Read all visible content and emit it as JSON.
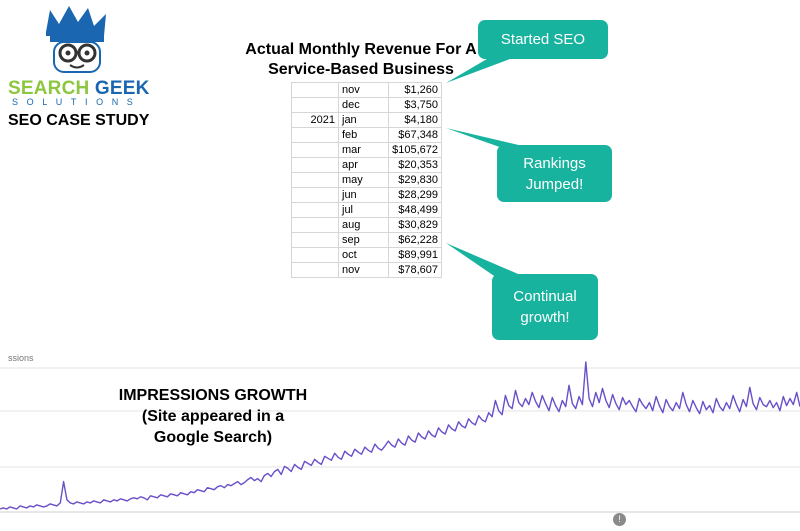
{
  "brand": {
    "name_part1": "SEARCH",
    "name_part2": "GEEK",
    "sub": "SOLUTIONS",
    "caption": "SEO CASE STUDY",
    "colors": {
      "green": "#8dc63f",
      "blue": "#1a66b0",
      "teal": "#17b39e"
    }
  },
  "table": {
    "title_line1": "Actual Monthly Revenue For A",
    "title_line2": "Service-Based Business",
    "rows": [
      {
        "year": "",
        "month": "nov",
        "value": "$1,260"
      },
      {
        "year": "",
        "month": "dec",
        "value": "$3,750"
      },
      {
        "year": "2021",
        "month": "jan",
        "value": "$4,180"
      },
      {
        "year": "",
        "month": "feb",
        "value": "$67,348"
      },
      {
        "year": "",
        "month": "mar",
        "value": "$105,672"
      },
      {
        "year": "",
        "month": "apr",
        "value": "$20,353"
      },
      {
        "year": "",
        "month": "may",
        "value": "$29,830"
      },
      {
        "year": "",
        "month": "jun",
        "value": "$28,299"
      },
      {
        "year": "",
        "month": "jul",
        "value": "$48,499"
      },
      {
        "year": "",
        "month": "aug",
        "value": "$30,829"
      },
      {
        "year": "",
        "month": "sep",
        "value": "$62,228"
      },
      {
        "year": "",
        "month": "oct",
        "value": "$89,991"
      },
      {
        "year": "",
        "month": "nov",
        "value": "$78,607"
      }
    ]
  },
  "callouts": {
    "seo": "Started SEO",
    "rank_line1": "Rankings",
    "rank_line2": "Jumped!",
    "growth_line1": "Continual",
    "growth_line2": "growth!"
  },
  "chart_data": {
    "type": "line",
    "axis_label": "ssions",
    "title_line1": "IMPRESSIONS GROWTH",
    "title_line2": "(Site appeared in a",
    "title_line3": "Google Search)",
    "line_color": "#6a4fc9",
    "grid": true,
    "ylim": [
      0,
      150
    ],
    "y": [
      3,
      4,
      3,
      5,
      4,
      3,
      6,
      5,
      4,
      6,
      5,
      7,
      6,
      5,
      6,
      8,
      7,
      6,
      9,
      30,
      12,
      9,
      8,
      10,
      9,
      8,
      10,
      9,
      11,
      10,
      9,
      12,
      11,
      10,
      12,
      11,
      13,
      12,
      11,
      13,
      14,
      13,
      15,
      14,
      12,
      16,
      15,
      14,
      17,
      16,
      15,
      18,
      17,
      16,
      19,
      18,
      17,
      20,
      19,
      22,
      21,
      20,
      24,
      23,
      22,
      25,
      26,
      24,
      27,
      26,
      28,
      30,
      27,
      29,
      32,
      34,
      31,
      33,
      30,
      36,
      38,
      35,
      40,
      42,
      37,
      45,
      43,
      40,
      47,
      44,
      42,
      50,
      48,
      46,
      52,
      49,
      47,
      55,
      53,
      51,
      58,
      54,
      52,
      60,
      57,
      55,
      62,
      59,
      57,
      64,
      61,
      59,
      67,
      63,
      61,
      65,
      70,
      66,
      64,
      72,
      68,
      66,
      75,
      71,
      69,
      78,
      74,
      72,
      80,
      76,
      74,
      83,
      79,
      77,
      86,
      82,
      80,
      89,
      85,
      83,
      92,
      88,
      86,
      95,
      91,
      89,
      98,
      94,
      110,
      100,
      96,
      115,
      105,
      102,
      120,
      108,
      104,
      112,
      106,
      118,
      109,
      103,
      115,
      107,
      100,
      113,
      105,
      99,
      110,
      104,
      125,
      107,
      102,
      114,
      106,
      148,
      112,
      104,
      118,
      108,
      122,
      110,
      103,
      116,
      107,
      101,
      113,
      106,
      110,
      104,
      99,
      112,
      106,
      102,
      108,
      100,
      114,
      105,
      98,
      111,
      104,
      100,
      108,
      102,
      118,
      106,
      99,
      110,
      103,
      97,
      109,
      101,
      105,
      98,
      112,
      104,
      100,
      108,
      102,
      115,
      106,
      99,
      111,
      104,
      123,
      107,
      101,
      113,
      106,
      104,
      110,
      103,
      108,
      100,
      114,
      105,
      112,
      106,
      118,
      104
    ]
  }
}
